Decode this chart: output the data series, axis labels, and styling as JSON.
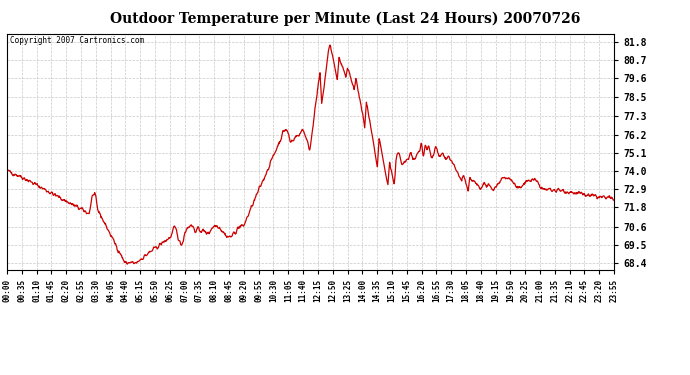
{
  "title": "Outdoor Temperature per Minute (Last 24 Hours) 20070726",
  "copyright_text": "Copyright 2007 Cartronics.com",
  "line_color": "#cc0000",
  "bg_color": "#ffffff",
  "plot_bg_color": "#ffffff",
  "grid_color": "#bbbbbb",
  "yticks": [
    68.4,
    69.5,
    70.6,
    71.8,
    72.9,
    74.0,
    75.1,
    76.2,
    77.3,
    78.5,
    79.6,
    80.7,
    81.8
  ],
  "ylim": [
    68.0,
    82.3
  ],
  "xtick_labels": [
    "00:00",
    "00:35",
    "01:10",
    "01:45",
    "02:20",
    "02:55",
    "03:30",
    "04:05",
    "04:40",
    "05:15",
    "05:50",
    "06:25",
    "07:00",
    "07:35",
    "08:10",
    "08:45",
    "09:20",
    "09:55",
    "10:30",
    "11:05",
    "11:40",
    "12:15",
    "12:50",
    "13:25",
    "14:00",
    "14:35",
    "15:10",
    "15:45",
    "16:20",
    "16:55",
    "17:30",
    "18:05",
    "18:40",
    "19:15",
    "19:50",
    "20:25",
    "21:00",
    "21:35",
    "22:10",
    "22:45",
    "23:20",
    "23:55"
  ]
}
